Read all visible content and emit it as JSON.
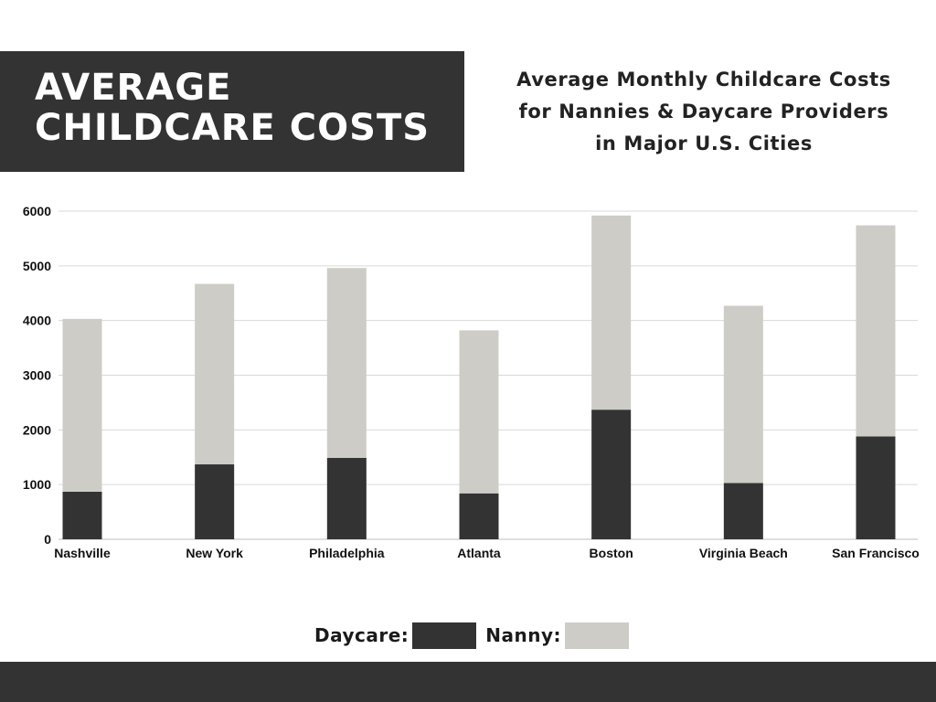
{
  "header": {
    "title_lines": [
      "AVERAGE",
      "CHILDCARE COSTS"
    ],
    "subtitle_lines": [
      "Average Monthly Childcare Costs",
      "for Nannies & Daycare Providers",
      "in Major U.S. Cities"
    ]
  },
  "legend": {
    "daycare_label": "Daycare:",
    "nanny_label": "Nanny:"
  },
  "colors": {
    "daycare": "#333333",
    "nanny": "#cdccc6",
    "grid": "#d9d9d9",
    "text": "#111111",
    "header_bg": "#333333"
  },
  "chart_data": {
    "type": "bar",
    "stacked": true,
    "title": "Average Monthly Childcare Costs for Nannies & Daycare Providers in Major U.S. Cities",
    "xlabel": "",
    "ylabel": "",
    "ylim": [
      0,
      6000
    ],
    "yticks": [
      0,
      1000,
      2000,
      3000,
      4000,
      5000,
      6000
    ],
    "grid": true,
    "legend_position": "bottom",
    "categories": [
      "Nashville",
      "New York",
      "Philadelphia",
      "Atlanta",
      "Boston",
      "Virginia Beach",
      "San Francisco"
    ],
    "series": [
      {
        "name": "Daycare",
        "values": [
          870,
          1370,
          1490,
          840,
          2370,
          1030,
          1880
        ]
      },
      {
        "name": "Nanny",
        "values": [
          3160,
          3300,
          3470,
          2980,
          3550,
          3240,
          3860
        ]
      }
    ]
  }
}
